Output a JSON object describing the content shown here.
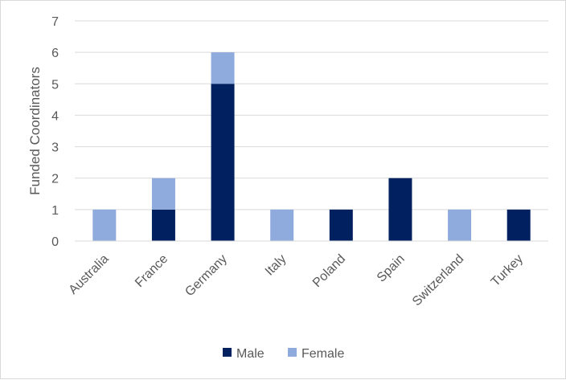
{
  "chart_data": {
    "type": "bar",
    "stacked": true,
    "title": "",
    "xlabel": "",
    "ylabel": "Funded Coordinators",
    "ylim": [
      0,
      7
    ],
    "yticks": [
      "0",
      "1",
      "2",
      "3",
      "4",
      "5",
      "6",
      "7"
    ],
    "grid": true,
    "legend_position": "bottom",
    "categories": [
      "Australia",
      "France",
      "Germany",
      "Italy",
      "Poland",
      "Spain",
      "Switzerland",
      "Turkey"
    ],
    "series": [
      {
        "name": "Male",
        "color": "#002060",
        "values": [
          0,
          1,
          5,
          0,
          1,
          2,
          0,
          1
        ]
      },
      {
        "name": "Female",
        "color": "#8faadc",
        "values": [
          1,
          1,
          1,
          1,
          0,
          0,
          1,
          0
        ]
      }
    ]
  }
}
